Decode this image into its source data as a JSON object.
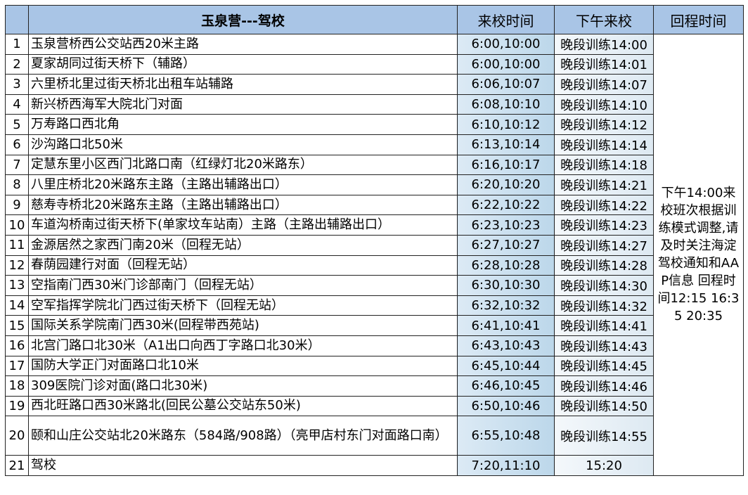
{
  "header": {
    "route": "玉泉营---驾校",
    "arrival_time": "来校时间",
    "afternoon_arrival": "下午来校",
    "return_time": "回程时间"
  },
  "rows": [
    {
      "no": "1",
      "stop": "玉泉营桥西公交站西20米主路",
      "time": "6:00,10:00",
      "afternoon": "晚段训练14:00"
    },
    {
      "no": "2",
      "stop": "夏家胡同过街天桥下（辅路）",
      "time": "6:00,10:00",
      "afternoon": "晚段训练14:01"
    },
    {
      "no": "3",
      "stop": "六里桥北里过街天桥北出租车站辅路",
      "time": "6:06,10:07",
      "afternoon": "晚段训练14:07"
    },
    {
      "no": "4",
      "stop": "新兴桥西海军大院北门对面",
      "time": "6:08,10:10",
      "afternoon": "晚段训练14:10"
    },
    {
      "no": "5",
      "stop": "万寿路口西北角",
      "time": "6:10,10:12",
      "afternoon": "晚段训练14:12"
    },
    {
      "no": "6",
      "stop": "沙沟路口北50米",
      "time": "6:13,10:14",
      "afternoon": "晚段训练14:14"
    },
    {
      "no": "7",
      "stop": "定慧东里小区西门北路口南（红绿灯北20米路东）",
      "time": "6:16,10:17",
      "afternoon": "晚段训练14:18"
    },
    {
      "no": "8",
      "stop": "八里庄桥北20米路东主路（主路出辅路出口）",
      "time": "6:20,10:20",
      "afternoon": "晚段训练14:21"
    },
    {
      "no": "9",
      "stop": "慈寿寺桥北20米路东主路（主路出辅路出口）",
      "time": "6:22,10:22",
      "afternoon": "晚段训练14:22"
    },
    {
      "no": "10",
      "stop": "车道沟桥南过街天桥下(单家坟车站南）主路（主路出辅路出口）",
      "time": "6:23,10:23",
      "afternoon": "晚段训练14:23"
    },
    {
      "no": "11",
      "stop": "金源居然之家西门南20米（回程无站）",
      "time": "6:27,10:27",
      "afternoon": "晚段训练14:27"
    },
    {
      "no": "12",
      "stop": "春荫园建行对面（回程无站）",
      "time": "6:28,10:28",
      "afternoon": "晚段训练14:28"
    },
    {
      "no": "13",
      "stop": "空指南门西30米门诊部南门（回程无站）",
      "time": "6:30,10:30",
      "afternoon": "晚段训练14:30"
    },
    {
      "no": "14",
      "stop": "空军指挥学院北门西过街天桥下（回程无站）",
      "time": "6:32,10:32",
      "afternoon": "晚段训练14:32"
    },
    {
      "no": "15",
      "stop": "国际关系学院南门西30米(回程带西苑站)",
      "time": "6:41,10:41",
      "afternoon": "晚段训练14:41"
    },
    {
      "no": "16",
      "stop": "北宫门路口北30米（A1出口向西丁字路口北30米）",
      "time": "6:43,10:43",
      "afternoon": "晚段训练14:43"
    },
    {
      "no": "17",
      "stop": "国防大学正门对面路口北10米",
      "time": "6:45,10:44",
      "afternoon": "晚段训练14:45"
    },
    {
      "no": "18",
      "stop": "309医院门诊对面(路口北30米)",
      "time": "6:46,10:45",
      "afternoon": "晚段训练14:46"
    },
    {
      "no": "19",
      "stop": "西北旺路口西30米路北(回民公墓公交站东50米)",
      "time": "6:50,10:46",
      "afternoon": "晚段训练14:50"
    },
    {
      "no": "20",
      "stop": "颐和山庄公交站北20米路东（584路/908路）（亮甲店村东门对面路口南）",
      "time": "6:55,10:48",
      "afternoon": "晚段训练14:55"
    },
    {
      "no": "21",
      "stop": "驾校",
      "time": "7:20,11:10",
      "afternoon": "15:20"
    }
  ],
  "return_note": "下午14:00来校班次根据训练模式调整,请及时关注海淀驾校通知和AAP信息  回程时间12:15 16:35 20:35"
}
